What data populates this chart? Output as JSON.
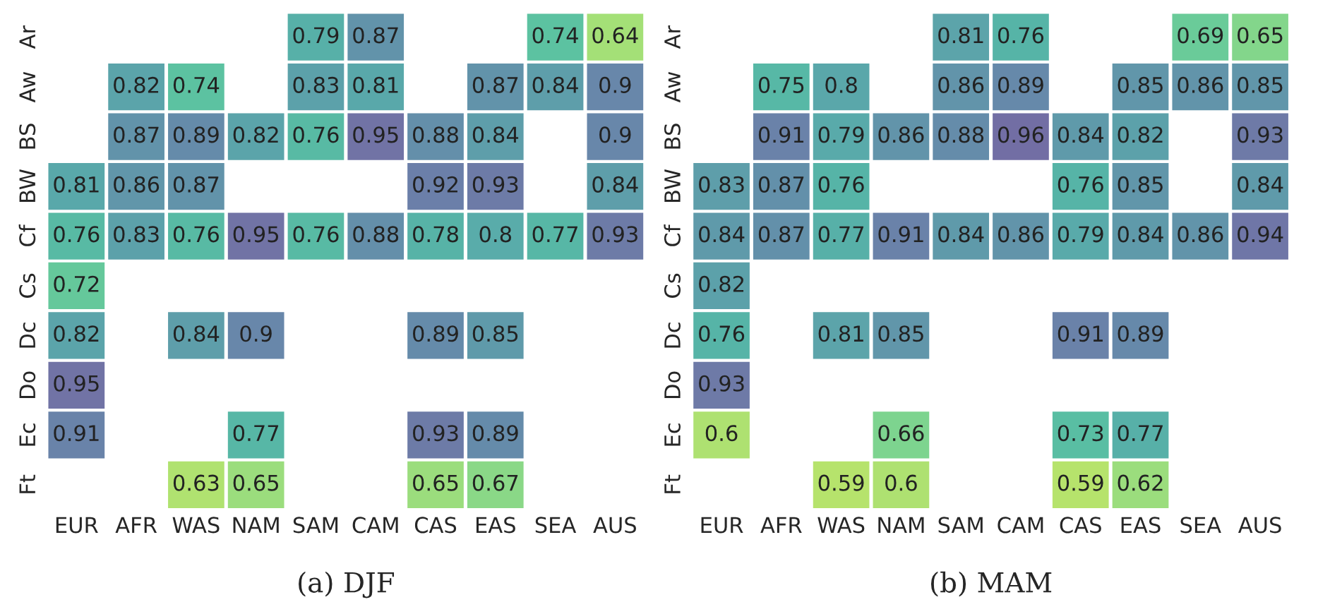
{
  "chart_data": [
    {
      "type": "heatmap",
      "title": "(a) DJF",
      "data_labels": true,
      "categories": [
        "EUR",
        "AFR",
        "WAS",
        "NAM",
        "SAM",
        "CAM",
        "CAS",
        "EAS",
        "SEA",
        "AUS"
      ],
      "y_categories": [
        "Ar",
        "Aw",
        "BS",
        "BW",
        "Cf",
        "Cs",
        "Dc",
        "Do",
        "Ec",
        "Ft"
      ],
      "cells": [
        [
          null,
          null,
          null,
          null,
          0.79,
          0.87,
          null,
          null,
          0.74,
          0.64
        ],
        [
          null,
          0.82,
          0.74,
          null,
          0.83,
          0.81,
          null,
          0.87,
          0.84,
          0.9
        ],
        [
          null,
          0.87,
          0.89,
          0.82,
          0.76,
          0.95,
          0.88,
          0.84,
          null,
          0.9
        ],
        [
          0.81,
          0.86,
          0.87,
          null,
          null,
          null,
          0.92,
          0.93,
          null,
          0.84
        ],
        [
          0.76,
          0.83,
          0.76,
          0.95,
          0.76,
          0.88,
          0.78,
          0.8,
          0.77,
          0.93
        ],
        [
          0.72,
          null,
          null,
          null,
          null,
          null,
          null,
          null,
          null,
          null
        ],
        [
          0.82,
          null,
          0.84,
          0.9,
          null,
          null,
          0.89,
          0.85,
          null,
          null
        ],
        [
          0.95,
          null,
          null,
          null,
          null,
          null,
          null,
          null,
          null,
          null
        ],
        [
          0.91,
          null,
          null,
          0.77,
          null,
          null,
          0.93,
          0.89,
          null,
          null
        ],
        [
          null,
          null,
          0.63,
          0.65,
          null,
          null,
          0.65,
          0.67,
          null,
          null
        ]
      ]
    },
    {
      "type": "heatmap",
      "title": "(b) MAM",
      "data_labels": true,
      "categories": [
        "EUR",
        "AFR",
        "WAS",
        "NAM",
        "SAM",
        "CAM",
        "CAS",
        "EAS",
        "SEA",
        "AUS"
      ],
      "y_categories": [
        "Ar",
        "Aw",
        "BS",
        "BW",
        "Cf",
        "Cs",
        "Dc",
        "Do",
        "Ec",
        "Ft"
      ],
      "cells": [
        [
          null,
          null,
          null,
          null,
          0.81,
          0.76,
          null,
          null,
          0.69,
          0.65
        ],
        [
          null,
          0.75,
          0.8,
          null,
          0.86,
          0.89,
          null,
          0.85,
          0.86,
          0.85
        ],
        [
          null,
          0.91,
          0.79,
          0.86,
          0.88,
          0.96,
          0.84,
          0.82,
          null,
          0.93
        ],
        [
          0.83,
          0.87,
          0.76,
          null,
          null,
          null,
          0.76,
          0.85,
          null,
          0.84
        ],
        [
          0.84,
          0.87,
          0.77,
          0.91,
          0.84,
          0.86,
          0.79,
          0.84,
          0.86,
          0.94
        ],
        [
          0.82,
          null,
          null,
          null,
          null,
          null,
          null,
          null,
          null,
          null
        ],
        [
          0.76,
          null,
          0.81,
          0.85,
          null,
          null,
          0.91,
          0.89,
          null,
          null
        ],
        [
          0.93,
          null,
          null,
          null,
          null,
          null,
          null,
          null,
          null,
          null
        ],
        [
          0.6,
          null,
          null,
          0.66,
          null,
          null,
          0.73,
          0.77,
          null,
          null
        ],
        [
          null,
          null,
          0.59,
          0.6,
          null,
          null,
          0.59,
          0.62,
          null,
          null
        ]
      ]
    }
  ]
}
